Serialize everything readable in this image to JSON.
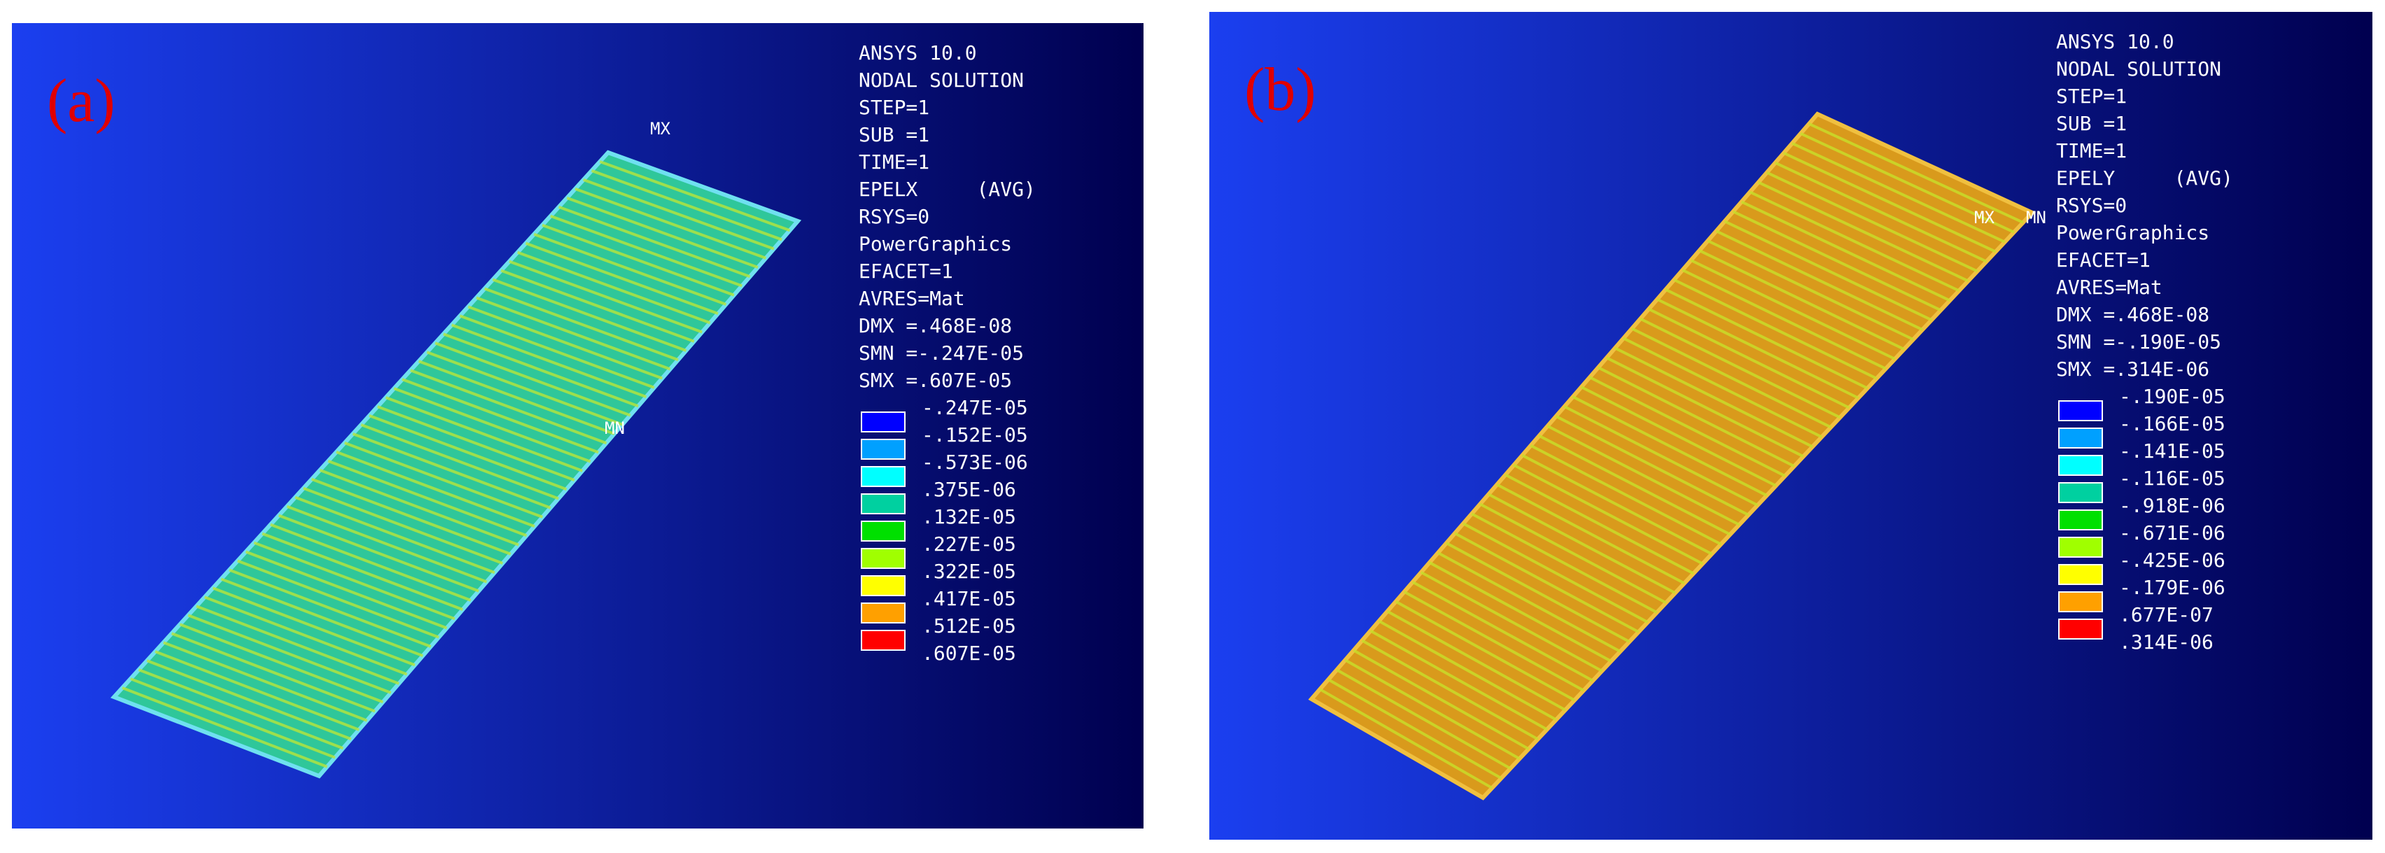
{
  "panels": [
    {
      "label": "(a)",
      "info": [
        "ANSYS 10.0",
        "NODAL SOLUTION",
        "STEP=1",
        "SUB =1",
        "TIME=1",
        "EPELX     (AVG)",
        "RSYS=0",
        "PowerGraphics",
        "EFACET=1",
        "AVRES=Mat",
        "DMX =.468E-08",
        "SMN =-.247E-05",
        "SMX =.607E-05"
      ],
      "legend": [
        "-.247E-05",
        "-.152E-05",
        "-.573E-06",
        ".375E-06",
        ".132E-05",
        ".227E-05",
        ".322E-05",
        ".417E-05",
        ".512E-05",
        ".607E-05"
      ],
      "markers": [
        "MX",
        "MN"
      ]
    },
    {
      "label": "(b)",
      "info": [
        "ANSYS 10.0",
        "NODAL SOLUTION",
        "STEP=1",
        "SUB =1",
        "TIME=1",
        "EPELY     (AVG)",
        "RSYS=0",
        "PowerGraphics",
        "EFACET=1",
        "AVRES=Mat",
        "DMX =.468E-08",
        "SMN =-.190E-05",
        "SMX =.314E-06"
      ],
      "legend": [
        "-.190E-05",
        "-.166E-05",
        "-.141E-05",
        "-.116E-05",
        "-.918E-06",
        "-.671E-06",
        "-.425E-06",
        "-.179E-06",
        ".677E-07",
        ".314E-06"
      ],
      "markers": [
        "MX",
        "MN"
      ]
    }
  ]
}
